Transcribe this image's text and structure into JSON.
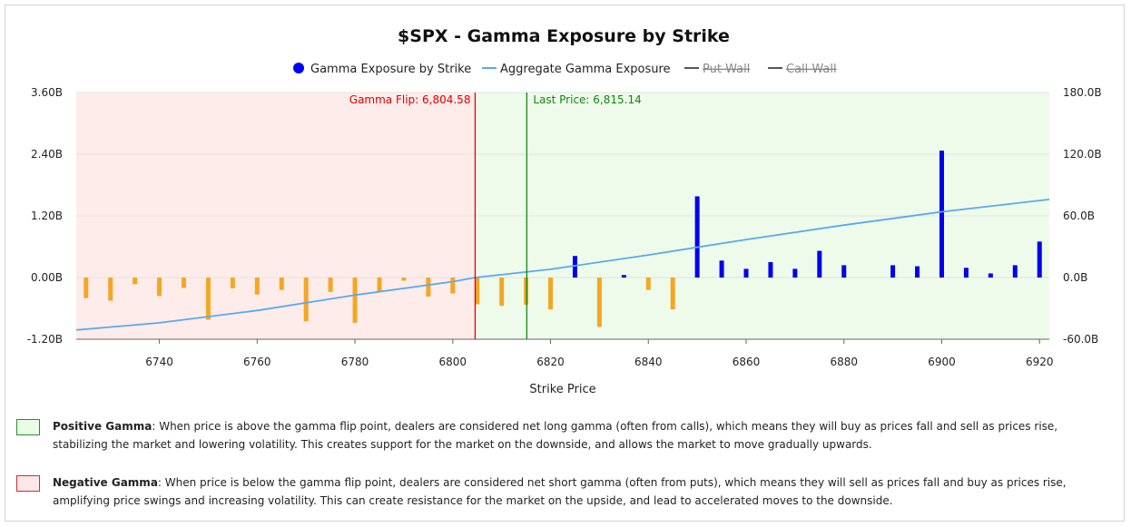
{
  "chart_data": {
    "type": "bar",
    "title": "$SPX - Gamma Exposure by Strike",
    "xlabel": "Strike Price",
    "ylabel": "",
    "xlim": [
      6723,
      6922
    ],
    "ylim": [
      -1.2,
      3.6
    ],
    "y2lim": [
      -60,
      180
    ],
    "x_ticks": [
      6740,
      6760,
      6780,
      6800,
      6820,
      6840,
      6860,
      6880,
      6900,
      6920
    ],
    "y_tick_labels": [
      "3.60B",
      "2.40B",
      "1.20B",
      "0.00B",
      "-1.20B"
    ],
    "y2_tick_labels": [
      "180.0B",
      "120.0B",
      "60.0B",
      "0.0B",
      "-60.0B"
    ],
    "legend": [
      {
        "name": "Gamma Exposure by Strike",
        "color": "#0000ff",
        "marker": "circle"
      },
      {
        "name": "Aggregate Gamma Exposure",
        "color": "#5aa9f0",
        "marker": "line"
      },
      {
        "name": "Put Wall",
        "color": "#555555",
        "marker": "line",
        "hidden": true
      },
      {
        "name": "Call Wall",
        "color": "#555555",
        "marker": "line",
        "hidden": true
      }
    ],
    "legend_position": "top-center",
    "series": [
      {
        "name": "Gamma Exposure by Strike",
        "x": [
          6725,
          6730,
          6735,
          6740,
          6745,
          6750,
          6755,
          6760,
          6765,
          6770,
          6775,
          6780,
          6785,
          6790,
          6795,
          6800,
          6805,
          6810,
          6815,
          6820,
          6825,
          6830,
          6835,
          6840,
          6845,
          6850,
          6855,
          6860,
          6865,
          6870,
          6875,
          6880,
          6890,
          6895,
          6900,
          6905,
          6910,
          6915,
          6920
        ],
        "values": [
          -0.4,
          -0.45,
          -0.13,
          -0.36,
          -0.2,
          -0.82,
          -0.21,
          -0.33,
          -0.24,
          -0.85,
          -0.28,
          -0.88,
          -0.27,
          -0.06,
          -0.37,
          -0.31,
          -0.52,
          -0.55,
          -0.53,
          -0.62,
          0.42,
          -0.96,
          0.05,
          -0.24,
          -0.62,
          1.58,
          0.33,
          0.17,
          0.3,
          0.17,
          0.52,
          0.24,
          0.24,
          0.22,
          2.47,
          0.19,
          0.08,
          0.24,
          0.7
        ],
        "positive_color": "#0000ee",
        "negative_color": "#f5a623"
      },
      {
        "name": "Aggregate Gamma Exposure",
        "axis": "right",
        "x": [
          6723,
          6740,
          6760,
          6780,
          6800,
          6804.58,
          6820,
          6840,
          6860,
          6880,
          6900,
          6922
        ],
        "values": [
          -51,
          -44,
          -32,
          -17,
          -4,
          0,
          8,
          22,
          37,
          51,
          64,
          76
        ],
        "color": "#5aa9f0"
      }
    ],
    "annotations": [
      {
        "label": "Gamma Flip: 6,804.58",
        "x": 6804.58,
        "color": "#e00000",
        "side": "left"
      },
      {
        "label": "Last Price: 6,815.14",
        "x": 6815.14,
        "color": "#118811",
        "side": "right"
      }
    ],
    "regions": [
      {
        "name": "negative-gamma",
        "from": 6723,
        "to": 6804.58,
        "color": "#fdecea"
      },
      {
        "name": "positive-gamma",
        "from": 6804.58,
        "to": 6922,
        "color": "#eefbea"
      }
    ],
    "grid": true
  },
  "notes": [
    {
      "swatch_fill": "#eafbe6",
      "swatch_border": "#2e8b2e",
      "bold": "Positive Gamma",
      "text": ": When price is above the gamma flip point, dealers are considered net long gamma (often from calls), which means they will buy as prices fall and sell as prices rise, stabilizing the market and lowering volatility. This creates support for the market on the downside, and allows the market to move gradually upwards."
    },
    {
      "swatch_fill": "#fde8e8",
      "swatch_border": "#d62b2b",
      "bold": "Negative Gamma",
      "text": ": When price is below the gamma flip point, dealers are considered net short gamma (often from puts), which means they will sell as prices fall and buy as prices rise, amplifying price swings and increasing volatility. This can create resistance for the market on the upside, and lead to accelerated moves to the downside."
    }
  ]
}
